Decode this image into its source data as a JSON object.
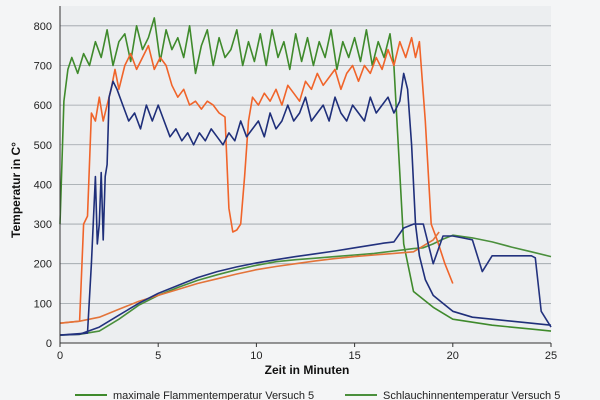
{
  "chart_data": {
    "type": "line",
    "title": "",
    "xlabel": "Zeit in Minuten",
    "ylabel": "Temperatur in C°",
    "xlim": [
      0,
      25
    ],
    "ylim": [
      0,
      850
    ],
    "xticks": [
      0,
      5,
      10,
      15,
      20,
      25
    ],
    "yticks": [
      0,
      100,
      200,
      300,
      400,
      500,
      600,
      700,
      800
    ],
    "grid": true,
    "legend_position": "bottom",
    "series": [
      {
        "name": "maximale Flammentemperatur Versuch 5",
        "color": "#3f8a2c",
        "x": [
          0,
          0.2,
          0.4,
          0.6,
          0.9,
          1.2,
          1.5,
          1.8,
          2.1,
          2.4,
          2.7,
          3.0,
          3.3,
          3.6,
          3.9,
          4.2,
          4.5,
          4.8,
          5.1,
          5.4,
          5.7,
          6.0,
          6.3,
          6.6,
          6.9,
          7.2,
          7.5,
          7.8,
          8.1,
          8.4,
          8.7,
          9.0,
          9.3,
          9.6,
          9.9,
          10.2,
          10.5,
          10.8,
          11.1,
          11.4,
          11.7,
          12.0,
          12.3,
          12.6,
          12.9,
          13.2,
          13.5,
          13.8,
          14.1,
          14.4,
          14.7,
          15.0,
          15.3,
          15.6,
          15.9,
          16.2,
          16.5,
          16.8,
          17.0,
          17.2,
          17.5,
          18.0,
          19.0,
          20.0,
          22.0,
          24.0,
          25.0
        ],
        "y": [
          300,
          610,
          690,
          720,
          680,
          730,
          700,
          760,
          720,
          790,
          700,
          760,
          780,
          710,
          800,
          740,
          770,
          820,
          710,
          790,
          740,
          770,
          720,
          800,
          680,
          750,
          790,
          700,
          770,
          720,
          740,
          790,
          700,
          760,
          710,
          780,
          700,
          790,
          720,
          760,
          690,
          780,
          710,
          770,
          700,
          760,
          720,
          790,
          690,
          760,
          720,
          770,
          710,
          790,
          700,
          760,
          720,
          780,
          700,
          520,
          250,
          130,
          90,
          60,
          45,
          35,
          30
        ]
      },
      {
        "name": "Schlauchinnentemperatur Versuch 5",
        "color": "#4a8f3c",
        "x": [
          0,
          1,
          2,
          3,
          4,
          5,
          6,
          7,
          8,
          9,
          10,
          11,
          12,
          13,
          14,
          15,
          16,
          17,
          17.5,
          18,
          18.5,
          19,
          19.5,
          20,
          21,
          22,
          23,
          24,
          25
        ],
        "y": [
          20,
          22,
          30,
          60,
          95,
          120,
          140,
          158,
          172,
          185,
          196,
          205,
          210,
          214,
          218,
          222,
          226,
          232,
          235,
          238,
          240,
          250,
          262,
          272,
          265,
          255,
          242,
          230,
          218
        ]
      },
      {
        "name": "",
        "color": "#f0642a",
        "x": [
          0,
          1,
          1.2,
          1.4,
          1.6,
          1.8,
          2.0,
          2.2,
          2.4,
          2.6,
          2.8,
          3.0,
          3.3,
          3.6,
          3.9,
          4.2,
          4.5,
          4.8,
          5.1,
          5.4,
          5.7,
          6.0,
          6.3,
          6.6,
          6.9,
          7.2,
          7.5,
          7.8,
          8.1,
          8.4,
          8.6,
          8.8,
          9.0,
          9.2,
          9.4,
          9.6,
          9.8,
          10.1,
          10.4,
          10.7,
          11.0,
          11.3,
          11.6,
          11.9,
          12.2,
          12.5,
          12.8,
          13.1,
          13.4,
          13.7,
          14.0,
          14.3,
          14.6,
          14.9,
          15.2,
          15.5,
          15.8,
          16.1,
          16.4,
          16.7,
          17.0,
          17.3,
          17.6,
          17.9,
          18.1,
          18.3,
          18.6,
          18.9,
          19.2,
          19.6,
          20.0
        ],
        "y": [
          50,
          55,
          300,
          320,
          580,
          560,
          620,
          560,
          600,
          640,
          690,
          640,
          700,
          730,
          690,
          720,
          750,
          690,
          720,
          700,
          650,
          620,
          640,
          600,
          610,
          590,
          610,
          600,
          580,
          570,
          340,
          280,
          285,
          300,
          420,
          560,
          620,
          600,
          630,
          610,
          640,
          600,
          650,
          630,
          610,
          660,
          640,
          680,
          650,
          670,
          690,
          640,
          680,
          700,
          660,
          700,
          680,
          720,
          690,
          740,
          700,
          760,
          720,
          770,
          720,
          760,
          560,
          300,
          260,
          200,
          150
        ]
      },
      {
        "name": "",
        "color": "#e3743a",
        "x": [
          0,
          1,
          2,
          3,
          4,
          5,
          6,
          7,
          8,
          9,
          10,
          11,
          12,
          13,
          14,
          15,
          16,
          17,
          18,
          19,
          19.3
        ],
        "y": [
          50,
          55,
          65,
          85,
          105,
          120,
          135,
          150,
          162,
          174,
          185,
          193,
          200,
          207,
          213,
          218,
          222,
          226,
          230,
          260,
          280
        ]
      },
      {
        "name": "",
        "color": "#1f2f7a",
        "x": [
          0,
          1.4,
          1.6,
          1.8,
          1.9,
          2.0,
          2.1,
          2.2,
          2.3,
          2.4,
          2.5,
          2.7,
          2.9,
          3.2,
          3.5,
          3.8,
          4.1,
          4.4,
          4.7,
          5.0,
          5.3,
          5.6,
          5.9,
          6.2,
          6.5,
          6.8,
          7.1,
          7.4,
          7.7,
          8.0,
          8.3,
          8.6,
          8.9,
          9.2,
          9.5,
          9.8,
          10.1,
          10.4,
          10.7,
          11.0,
          11.3,
          11.6,
          11.9,
          12.2,
          12.5,
          12.8,
          13.1,
          13.4,
          13.7,
          14.0,
          14.3,
          14.6,
          14.9,
          15.2,
          15.5,
          15.8,
          16.1,
          16.4,
          16.7,
          17.0,
          17.3,
          17.5,
          17.7,
          17.9,
          18.1,
          18.3,
          18.6,
          19.0,
          19.5,
          20.0,
          21.0,
          22.0,
          23.0,
          24.0,
          25.0
        ],
        "y": [
          20,
          25,
          200,
          420,
          250,
          300,
          430,
          260,
          420,
          450,
          620,
          660,
          640,
          600,
          560,
          580,
          540,
          600,
          560,
          600,
          560,
          520,
          540,
          510,
          530,
          500,
          530,
          510,
          540,
          520,
          500,
          530,
          510,
          560,
          520,
          540,
          560,
          520,
          580,
          540,
          560,
          600,
          560,
          580,
          620,
          560,
          580,
          600,
          560,
          620,
          580,
          560,
          600,
          580,
          560,
          620,
          580,
          600,
          620,
          580,
          610,
          680,
          640,
          500,
          300,
          220,
          160,
          120,
          100,
          80,
          65,
          60,
          55,
          50,
          45
        ]
      },
      {
        "name": "",
        "color": "#23327e",
        "x": [
          0,
          1,
          2,
          3,
          4,
          5,
          6,
          7,
          8,
          9,
          10,
          11,
          12,
          13,
          14,
          15,
          16,
          16.5,
          17,
          17.5,
          18,
          18.5,
          19,
          19.5,
          20,
          20.5,
          21,
          21.5,
          22,
          23,
          24,
          24.2,
          24.5,
          25
        ],
        "y": [
          20,
          22,
          40,
          70,
          100,
          125,
          145,
          165,
          180,
          192,
          202,
          210,
          218,
          225,
          232,
          240,
          248,
          252,
          255,
          290,
          300,
          300,
          200,
          270,
          270,
          265,
          260,
          180,
          220,
          220,
          220,
          215,
          80,
          40
        ]
      }
    ]
  }
}
